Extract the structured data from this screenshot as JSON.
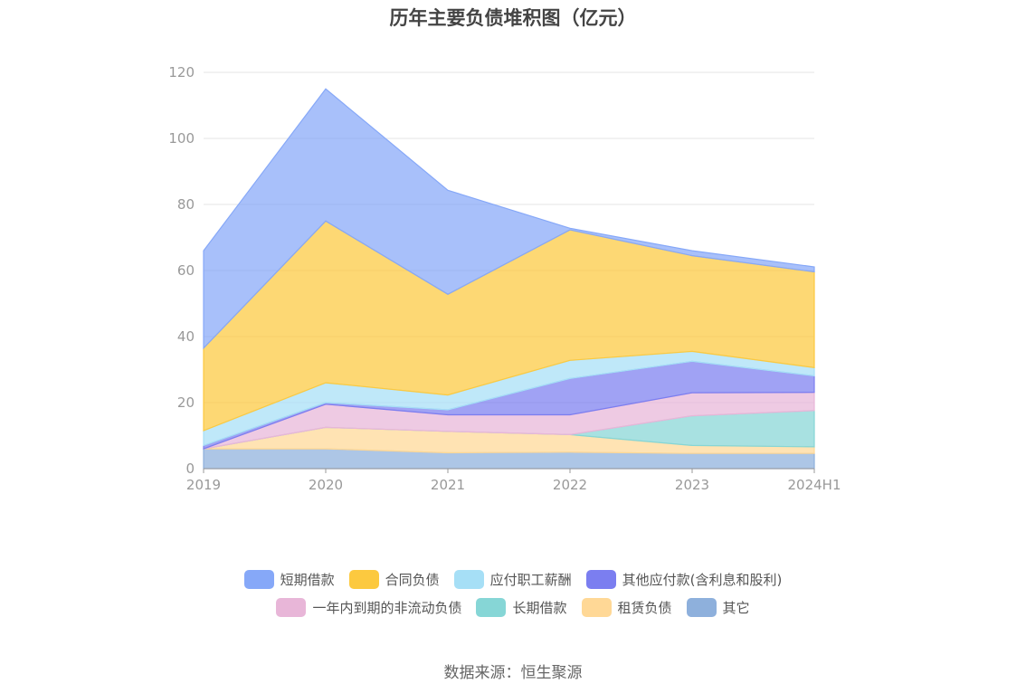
{
  "chart_data": {
    "type": "area",
    "stacked": true,
    "title": "历年主要负债堆积图（亿元）",
    "categories": [
      "2019",
      "2020",
      "2021",
      "2022",
      "2023",
      "2024H1"
    ],
    "ylim": [
      0,
      120
    ],
    "yticks": [
      0,
      20,
      40,
      60,
      80,
      100,
      120
    ],
    "grid": true,
    "legend_position": "bottom",
    "series": [
      {
        "name": "其它",
        "color": "#8eb0dc",
        "values": [
          6.0,
          6.0,
          4.8,
          5.0,
          4.6,
          4.6
        ]
      },
      {
        "name": "租赁负债",
        "color": "#ffd896",
        "values": [
          0.0,
          6.5,
          6.5,
          5.3,
          2.4,
          2.0
        ]
      },
      {
        "name": "长期借款",
        "color": "#86d6d6",
        "values": [
          0.0,
          0.0,
          0.0,
          0.0,
          9.0,
          11.0
        ]
      },
      {
        "name": "一年内到期的非流动负债",
        "color": "#e8b6d8",
        "values": [
          0.0,
          7.0,
          5.0,
          6.0,
          7.0,
          5.5
        ]
      },
      {
        "name": "其他应付款(含利息和股利)",
        "color": "#7b7ef0",
        "values": [
          1.0,
          0.5,
          1.5,
          11.0,
          9.5,
          5.0
        ]
      },
      {
        "name": "应付职工薪酬",
        "color": "#a6dff6",
        "values": [
          4.5,
          6.0,
          4.5,
          5.5,
          3.0,
          2.5
        ]
      },
      {
        "name": "合同负债",
        "color": "#fcc93f",
        "values": [
          25.0,
          49.0,
          30.5,
          39.5,
          29.0,
          29.0
        ]
      },
      {
        "name": "短期借款",
        "color": "#86a8f8",
        "values": [
          29.5,
          40.0,
          31.5,
          0.5,
          1.5,
          1.5
        ]
      }
    ],
    "legend_order": [
      "短期借款",
      "合同负债",
      "应付职工薪酬",
      "其他应付款(含利息和股利)",
      "一年内到期的非流动负债",
      "长期借款",
      "租赁负债",
      "其它"
    ]
  },
  "source": "数据来源：恒生聚源"
}
